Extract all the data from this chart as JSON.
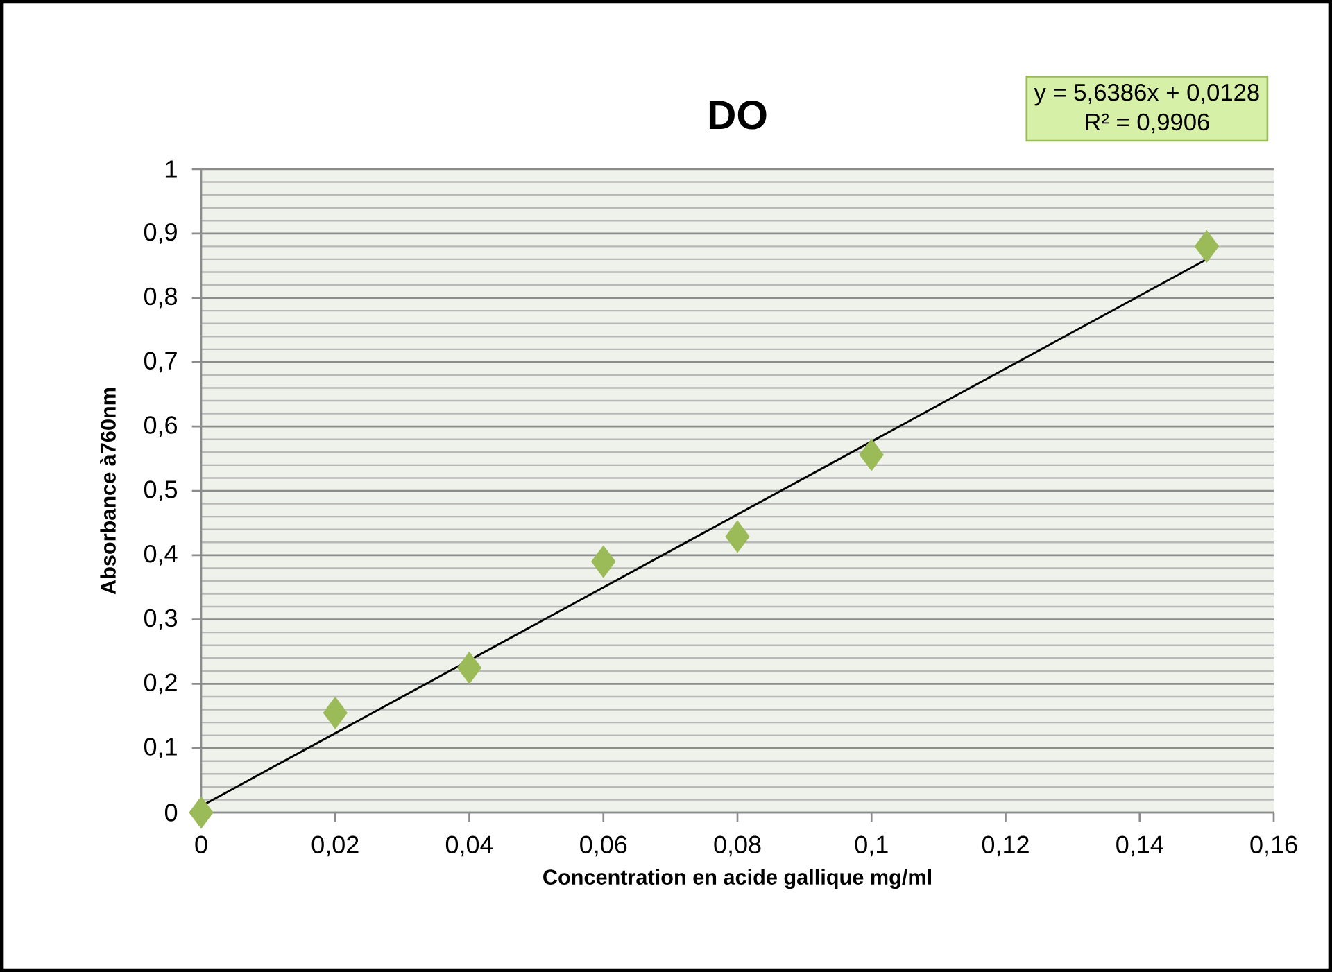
{
  "chart_data": {
    "type": "scatter",
    "title": "DO",
    "xlabel": "Concentration en acide gallique mg/ml",
    "ylabel": "Absorbance à760nm",
    "x": [
      0,
      0.02,
      0.04,
      0.06,
      0.08,
      0.1,
      0.15
    ],
    "series": [
      {
        "color": "#9bbb59",
        "marker": "diamond",
        "values": [
          0,
          0.155,
          0.225,
          0.39,
          0.429,
          0.556,
          0.88
        ]
      },
      {
        "type": "line",
        "color": "#000000",
        "marker": "none",
        "line_style": "solid",
        "x": [
          0,
          0.15
        ],
        "values": [
          0.01,
          0.86
        ]
      }
    ],
    "xlim": [
      0,
      0.16
    ],
    "ylim": [
      0,
      1
    ],
    "xticks": [
      {
        "value": 0,
        "label": "0"
      },
      {
        "value": 0.02,
        "label": "0,02"
      },
      {
        "value": 0.04,
        "label": "0,04"
      },
      {
        "value": 0.06,
        "label": "0,06"
      },
      {
        "value": 0.08,
        "label": "0,08"
      },
      {
        "value": 0.1,
        "label": "0,1"
      },
      {
        "value": 0.12,
        "label": "0,12"
      },
      {
        "value": 0.14,
        "label": "0,14"
      },
      {
        "value": 0.16,
        "label": "0,16"
      }
    ],
    "yticks": [
      {
        "value": 0,
        "label": "0"
      },
      {
        "value": 0.1,
        "label": "0,1"
      },
      {
        "value": 0.2,
        "label": "0,2"
      },
      {
        "value": 0.3,
        "label": "0,3"
      },
      {
        "value": 0.4,
        "label": "0,4"
      },
      {
        "value": 0.5,
        "label": "0,5"
      },
      {
        "value": 0.6,
        "label": "0,6"
      },
      {
        "value": 0.7,
        "label": "0,7"
      },
      {
        "value": 0.8,
        "label": "0,8"
      },
      {
        "value": 0.9,
        "label": "0,9"
      },
      {
        "value": 1,
        "label": "1"
      }
    ],
    "grid": "y",
    "annotations": [
      "y = 5,6386x + 0,0128",
      "R² = 0,9906"
    ]
  }
}
